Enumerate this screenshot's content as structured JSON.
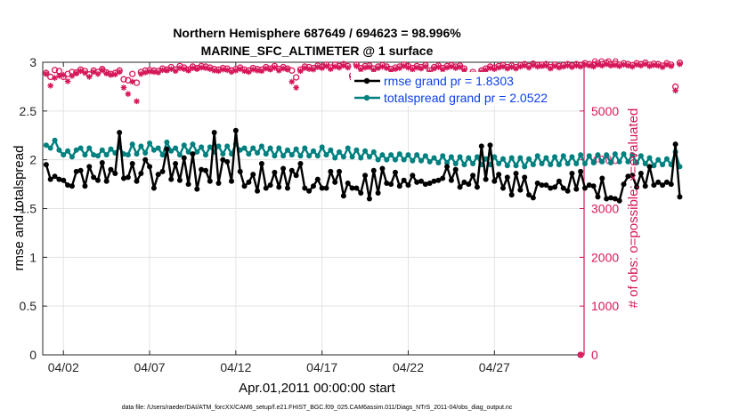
{
  "title_line1": "Northern Hemisphere 687649 / 694623 = 98.996%",
  "title_line2": "MARINE_SFC_ALTIMETER @ 1 surface",
  "footer": "data file: /Users/raeder/DAI/ATM_forcXX/CAM6_setup/f.e21.FHIST_BGC.f09_025.CAM6assim.011/Diags_NTrS_2011-04/obs_diag_output.nc",
  "colors": {
    "rmse": "#000000",
    "spread": "#00807F",
    "obs": "#D6175A",
    "legend_text": "#0B3FEF",
    "grid": "#E3E3E3"
  },
  "chart_data": {
    "type": "line",
    "xlabel": "Apr.01,2011 00:00:00 start",
    "ylabel_left": "rmse and totalspread",
    "ylabel_right": "# of obs: o=possible; ×=evaluated",
    "xlim": [
      0.3,
      31.7
    ],
    "ylim_left": [
      0,
      3
    ],
    "ylim_right": [
      0,
      6000
    ],
    "x_ticks": [
      1.5,
      6.5,
      11.5,
      16.5,
      21.5,
      26.5
    ],
    "x_tick_labels": [
      "04/02",
      "04/07",
      "04/12",
      "04/17",
      "04/22",
      "04/27"
    ],
    "y_ticks_left": [
      0,
      0.5,
      1,
      1.5,
      2,
      2.5,
      3
    ],
    "y_tick_labels_left": [
      "0",
      "0.5",
      "1",
      "1.5",
      "2",
      "2.5",
      "3"
    ],
    "y_ticks_right": [
      0,
      1000,
      2000,
      3000,
      4000,
      5000,
      6000
    ],
    "y_tick_labels_right": [
      "0",
      "1000",
      "2000",
      "3000",
      "4000",
      "5000",
      "6000"
    ],
    "grid": true,
    "legend_position": "top-right",
    "x_start": 0.5,
    "x_step": 0.25,
    "series": [
      {
        "name": "rmse grand pr = 1.8303",
        "axis": "left",
        "marker": "dot",
        "values": [
          1.95,
          1.8,
          1.83,
          1.8,
          1.79,
          1.74,
          1.73,
          1.88,
          1.89,
          1.73,
          1.93,
          1.82,
          1.79,
          1.97,
          1.78,
          1.9,
          1.86,
          2.28,
          1.81,
          1.82,
          1.96,
          1.78,
          1.86,
          2.0,
          1.93,
          1.71,
          1.85,
          1.88,
          2.11,
          1.8,
          1.96,
          1.79,
          2.02,
          1.75,
          2.06,
          1.7,
          1.9,
          1.89,
          1.78,
          2.28,
          1.76,
          2.0,
          1.98,
          1.78,
          2.3,
          1.88,
          1.73,
          1.77,
          1.85,
          1.68,
          1.96,
          1.71,
          1.74,
          1.87,
          1.72,
          1.91,
          1.71,
          1.89,
          1.84,
          1.96,
          1.71,
          1.68,
          1.73,
          1.8,
          1.71,
          1.71,
          1.88,
          1.77,
          1.88,
          1.63,
          1.76,
          1.71,
          1.71,
          1.66,
          1.84,
          1.6,
          1.89,
          1.66,
          1.91,
          1.76,
          1.75,
          1.87,
          1.73,
          1.79,
          1.74,
          1.84,
          1.77,
          1.78,
          1.75,
          1.76,
          1.78,
          1.79,
          1.81,
          1.93,
          1.79,
          1.9,
          1.72,
          1.77,
          1.75,
          1.84,
          1.72,
          2.14,
          1.8,
          2.15,
          1.78,
          1.85,
          1.71,
          1.82,
          1.64,
          1.86,
          1.69,
          1.82,
          1.64,
          1.61,
          1.76,
          1.74,
          1.74,
          1.71,
          1.72,
          1.78,
          1.71,
          1.68,
          1.86,
          1.7,
          1.88,
          1.71,
          1.74,
          1.73,
          1.62,
          1.81,
          1.6,
          1.61,
          1.6,
          1.58,
          1.75,
          1.83,
          1.84,
          1.72,
          1.86,
          1.73,
          1.93,
          1.74,
          1.77,
          1.74,
          1.77,
          1.75,
          2.16,
          1.62
        ]
      },
      {
        "name": "totalspread grand pr = 2.0522",
        "axis": "left",
        "marker": "dot",
        "values": [
          2.15,
          2.12,
          2.2,
          2.1,
          2.05,
          2.09,
          2.03,
          2.1,
          2.12,
          2.05,
          2.12,
          2.05,
          2.04,
          2.1,
          2.05,
          2.11,
          2.07,
          2.13,
          2.06,
          2.05,
          2.16,
          2.06,
          2.14,
          2.07,
          2.17,
          2.1,
          2.12,
          2.05,
          2.18,
          2.09,
          2.12,
          2.05,
          2.15,
          2.08,
          2.16,
          2.08,
          2.13,
          2.05,
          2.13,
          2.08,
          2.14,
          2.06,
          2.14,
          2.06,
          2.16,
          2.1,
          2.12,
          2.06,
          2.12,
          2.07,
          2.14,
          2.06,
          2.12,
          2.04,
          2.12,
          2.04,
          2.1,
          2.05,
          2.11,
          2.04,
          2.12,
          2.04,
          2.09,
          2.04,
          2.13,
          2.05,
          2.1,
          2.02,
          2.08,
          2.03,
          2.12,
          2.03,
          2.1,
          2.02,
          2.09,
          2.03,
          2.08,
          2.0,
          2.05,
          2.0,
          2.05,
          2.0,
          2.06,
          2.0,
          2.05,
          1.99,
          2.05,
          1.99,
          2.04,
          1.98,
          2.02,
          1.97,
          2.04,
          1.97,
          2.03,
          1.96,
          2.03,
          1.95,
          2.02,
          1.96,
          2.03,
          1.95,
          2.01,
          1.95,
          2.03,
          1.96,
          2.01,
          1.94,
          2.02,
          1.94,
          2.02,
          1.93,
          2.01,
          1.95,
          2.04,
          1.96,
          2.02,
          1.95,
          2.03,
          1.95,
          2.04,
          1.96,
          2.03,
          1.96,
          2.05,
          1.96,
          2.04,
          1.97,
          2.05,
          1.98,
          2.05,
          1.97,
          2.06,
          1.98,
          2.06,
          1.98,
          2.05,
          1.97,
          2.04,
          1.96,
          2.02,
          1.94,
          2.0,
          1.95,
          2.01,
          1.95,
          2.08,
          1.93
        ]
      },
      {
        "name": "obs possible",
        "axis": "right",
        "marker": "circle",
        "values": [
          5780,
          5700,
          5840,
          5820,
          5700,
          5760,
          5800,
          5790,
          5850,
          5820,
          5750,
          5830,
          5800,
          5860,
          5790,
          5760,
          5780,
          5830,
          5650,
          5630,
          5760,
          5580,
          5800,
          5830,
          5840,
          5830,
          5820,
          5870,
          5850,
          5900,
          5850,
          5920,
          5890,
          5850,
          5910,
          5880,
          5920,
          5910,
          5890,
          5860,
          5850,
          5880,
          5870,
          5830,
          5860,
          5890,
          5850,
          5830,
          5880,
          5860,
          5850,
          5900,
          5870,
          5920,
          5860,
          5900,
          5870,
          5830,
          5690,
          5850,
          5910,
          5900,
          5880,
          5930,
          5910,
          5950,
          5890,
          5950,
          5920,
          5960,
          5920,
          5730,
          5950,
          5880,
          5920,
          5930,
          5870,
          5910,
          5940,
          5910,
          5860,
          5890,
          5910,
          5950,
          5920,
          5880,
          5920,
          5900,
          5940,
          5830,
          5900,
          5930,
          5880,
          5920,
          5940,
          5910,
          5930,
          5870,
          5660,
          5800,
          5550,
          5830,
          5870,
          5910,
          5890,
          5920,
          5940,
          5900,
          5930,
          5900,
          5940,
          5960,
          5920,
          5970,
          5940,
          5950,
          5960,
          5900,
          5950,
          5920,
          5940,
          5960,
          5930,
          5960,
          5940,
          5980,
          5960,
          5940,
          5980,
          5960,
          5990,
          5960,
          5970,
          5950,
          5980,
          5960,
          5940,
          5980,
          5960,
          5990,
          5950,
          5970,
          5960,
          5930,
          5980,
          5950,
          5500,
          5990
        ]
      },
      {
        "name": "obs evaluated",
        "axis": "right",
        "marker": "star",
        "values": [
          5760,
          5520,
          5680,
          5720,
          5740,
          5610,
          5720,
          5770,
          5820,
          5780,
          5700,
          5800,
          5760,
          5840,
          5770,
          5740,
          5750,
          5800,
          5480,
          5350,
          5600,
          5200,
          5760,
          5790,
          5810,
          5800,
          5790,
          5840,
          5830,
          5860,
          5820,
          5880,
          5860,
          5830,
          5880,
          5860,
          5890,
          5880,
          5860,
          5830,
          5820,
          5850,
          5840,
          5800,
          5830,
          5860,
          5820,
          5800,
          5850,
          5830,
          5820,
          5870,
          5850,
          5890,
          5830,
          5870,
          5850,
          5600,
          5480,
          5820,
          5880,
          5860,
          5850,
          5900,
          5880,
          5920,
          5860,
          5910,
          5890,
          5930,
          5890,
          5680,
          5920,
          5850,
          5890,
          5900,
          5840,
          5880,
          5910,
          5880,
          5830,
          5860,
          5880,
          5920,
          5890,
          5850,
          5890,
          5870,
          5910,
          5800,
          5870,
          5900,
          5850,
          5890,
          5910,
          5880,
          5900,
          5840,
          5390,
          5760,
          5300,
          5800,
          5840,
          5880,
          5860,
          5890,
          5910,
          5870,
          5900,
          5870,
          5910,
          5930,
          5890,
          5940,
          5910,
          5920,
          5930,
          5870,
          5920,
          5890,
          5910,
          5930,
          5900,
          5930,
          5910,
          5950,
          5930,
          5910,
          5950,
          5930,
          5960,
          5930,
          5940,
          5920,
          5950,
          5930,
          5910,
          5950,
          5930,
          5960,
          5920,
          5940,
          5930,
          5900,
          5950,
          5920,
          5420,
          5960
        ]
      }
    ],
    "end_points": [
      {
        "x": 31.5,
        "value": 0,
        "axis": "right",
        "marker": "circle-star"
      }
    ]
  }
}
